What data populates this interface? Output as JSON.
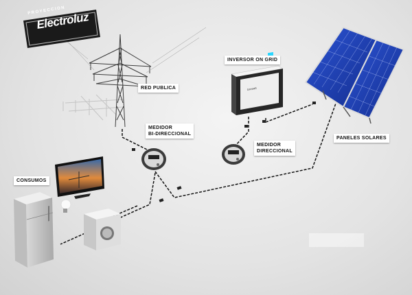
{
  "logo": {
    "top_text": "PROYECCION",
    "main_text": "Electroluz"
  },
  "labels": {
    "red_publica": "RED PUBLICA",
    "inversor": "INVERSOR ON GRID",
    "paneles": "PANELES SOLARES",
    "medidor_bi": [
      "MEDIDOR",
      "BI-DIRECCIONAL"
    ],
    "medidor_dir": [
      "MEDIDOR",
      "DIRECCIONAL"
    ],
    "consumos": "CONSUMOS"
  },
  "colors": {
    "cable": "#111111",
    "panel_cell": "#1f3fb0",
    "inverter_display": "#2bd6ff"
  }
}
